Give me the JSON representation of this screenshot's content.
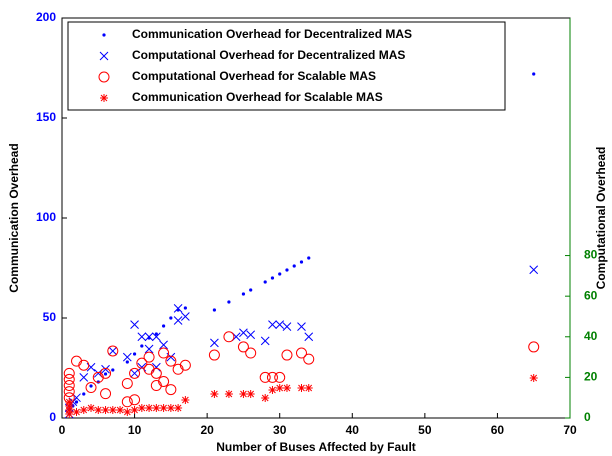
{
  "chart_data": {
    "type": "scatter",
    "xlabel": "Number of Buses Affected by Fault",
    "ylabel": "Communication Overhead",
    "y2label": "Computational Overhead",
    "xlim": [
      0,
      70
    ],
    "xticks": [
      0,
      10,
      20,
      30,
      40,
      50,
      60,
      70
    ],
    "ylim": [
      0,
      200
    ],
    "yticks": [
      0,
      50,
      100,
      150,
      200
    ],
    "ycolor": "#0000ff",
    "y2lim": [
      0,
      197
    ],
    "y2ticks": [
      0,
      20,
      40,
      60,
      80
    ],
    "y2color": "#008000",
    "legend": "upper left",
    "series": [
      {
        "name": "Communication Overhead for Decentralized MAS",
        "color": "#0000ff",
        "marker": "dot",
        "x": [
          1,
          1,
          1.5,
          2,
          3,
          4,
          5,
          6,
          7,
          9,
          10,
          11,
          12,
          13,
          14,
          15,
          16,
          17,
          21,
          23,
          25,
          26,
          28,
          29,
          30,
          31,
          32,
          33,
          34,
          65
        ],
        "values": [
          2,
          4,
          6,
          8,
          12,
          16,
          18,
          22,
          24,
          28,
          32,
          36,
          40,
          42,
          46,
          50,
          54,
          55,
          54,
          58,
          62,
          64,
          68,
          70,
          72,
          74,
          76,
          78,
          80,
          172
        ]
      },
      {
        "name": "Computational Overhead for Decentralized MAS",
        "color": "#0000ff",
        "marker": "x",
        "axis": "y2",
        "x": [
          1,
          1,
          1.5,
          2,
          3,
          4,
          5,
          6,
          7,
          9,
          10,
          10,
          11,
          11,
          12,
          12,
          13,
          13,
          14,
          15,
          16,
          16,
          17,
          21,
          24,
          25,
          26,
          28,
          29,
          30,
          31,
          33,
          34,
          65
        ],
        "values": [
          2,
          5,
          8,
          10,
          20,
          25,
          22,
          24,
          33,
          30,
          46,
          22,
          40,
          25,
          40,
          34,
          40,
          25,
          36,
          30,
          54,
          48,
          50,
          37,
          40,
          42,
          41,
          38,
          46,
          46,
          45,
          45,
          40,
          73
        ]
      },
      {
        "name": "Computational Overhead for Scalable MAS",
        "color": "#ff0000",
        "marker": "circle",
        "axis": "y2",
        "x": [
          1,
          1,
          1,
          1,
          1,
          2,
          3,
          4,
          5,
          6,
          6,
          7,
          9,
          9,
          10,
          10,
          11,
          12,
          12,
          13,
          13,
          14,
          14,
          15,
          15,
          16,
          17,
          21,
          23,
          25,
          26,
          28,
          29,
          30,
          31,
          33,
          34,
          65
        ],
        "values": [
          10,
          13,
          16,
          19,
          22,
          28,
          26,
          15,
          20,
          22,
          12,
          33,
          17,
          8,
          9,
          22,
          27,
          24,
          30,
          22,
          16,
          18,
          32,
          14,
          28,
          24,
          26,
          31,
          40,
          35,
          32,
          20,
          20,
          20,
          31,
          32,
          29,
          35
        ]
      },
      {
        "name": "Communication Overhead for Scalable MAS",
        "color": "#ff0000",
        "marker": "asterisk",
        "x": [
          1,
          1,
          1,
          1,
          2,
          3,
          4,
          5,
          6,
          7,
          8,
          9,
          10,
          11,
          12,
          13,
          14,
          15,
          16,
          17,
          21,
          23,
          25,
          26,
          28,
          29,
          30,
          31,
          33,
          34,
          65
        ],
        "values": [
          2,
          4,
          6,
          8,
          3,
          4,
          5,
          4,
          4,
          4,
          4,
          3,
          4,
          5,
          5,
          5,
          5,
          5,
          5,
          9,
          12,
          12,
          12,
          12,
          10,
          14,
          15,
          15,
          15,
          15,
          20
        ]
      }
    ]
  }
}
